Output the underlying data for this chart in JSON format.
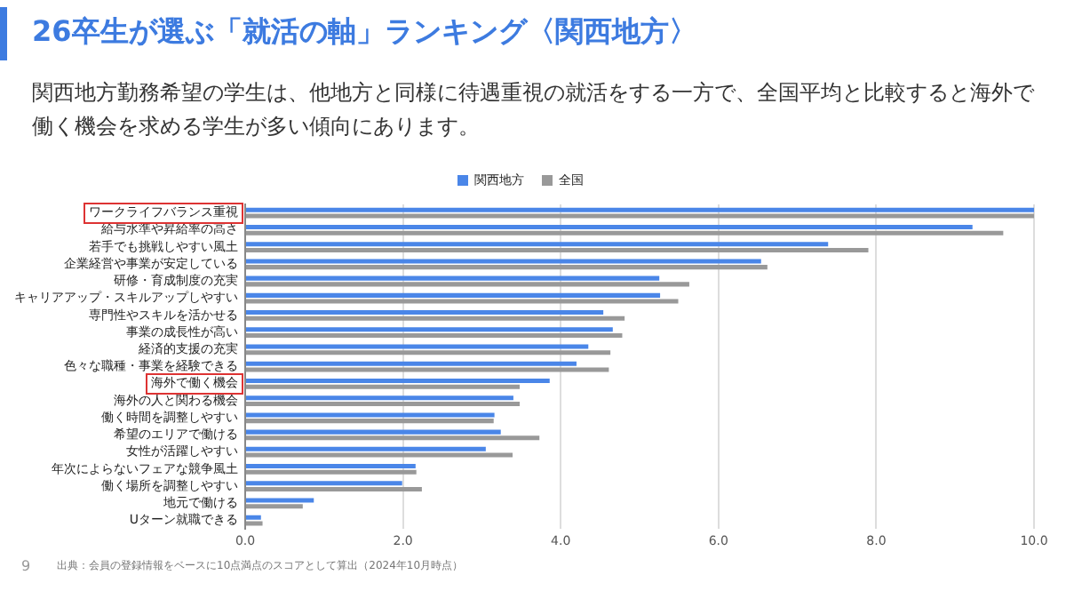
{
  "chart_data": {
    "type": "bar",
    "orientation": "horizontal",
    "title": "26卒生が選ぶ「就活の軸」ランキング〈関西地方〉",
    "subtitle": "関西地方勤務希望の学生は、他地方と同様に待遇重視の就活をする一方で、全国平均と比較すると海外で働く機会を求める学生が多い傾向にあります。",
    "categories": [
      "ワークライフバランス重視",
      "給与水準や昇給率の高さ",
      "若手でも挑戦しやすい風土",
      "企業経営や事業が安定している",
      "研修・育成制度の充実",
      "キャリアアップ・スキルアップしやすい",
      "専門性やスキルを活かせる",
      "事業の成長性が高い",
      "経済的支援の充実",
      "色々な職種・事業を経験できる",
      "海外で働く機会",
      "海外の人と関わる機会",
      "働く時間を調整しやすい",
      "希望のエリアで働ける",
      "女性が活躍しやすい",
      "年次によらないフェアな競争風土",
      "働く場所を調整しやすい",
      "地元で働ける",
      "Uターン就職できる"
    ],
    "series": [
      {
        "name": "関西地方",
        "color": "#4a86e8",
        "values": [
          10,
          9.22,
          7.39,
          6.54,
          5.25,
          5.26,
          4.54,
          4.66,
          4.35,
          4.2,
          3.86,
          3.4,
          3.16,
          3.24,
          3.05,
          2.16,
          1.99,
          0.87,
          0.2
        ]
      },
      {
        "name": "全国",
        "color": "#999999",
        "values": [
          10,
          9.61,
          7.9,
          6.62,
          5.63,
          5.49,
          4.81,
          4.78,
          4.63,
          4.61,
          3.48,
          3.48,
          3.15,
          3.73,
          3.39,
          2.17,
          2.24,
          0.73,
          0.22
        ]
      }
    ],
    "xlim": [
      0,
      10
    ],
    "xticks": [
      {
        "value": 0,
        "label": "0.0"
      },
      {
        "value": 2,
        "label": "2.0"
      },
      {
        "value": 4,
        "label": "4.0"
      },
      {
        "value": 6,
        "label": "6.0"
      },
      {
        "value": 8,
        "label": "8.0"
      },
      {
        "value": 10,
        "label": "10.0"
      }
    ],
    "grid": "x",
    "legend": "top",
    "annotations": [
      "出典：会員の登録情報をベースに10点満点のスコアとして算出（2024年10月時点）",
      "9"
    ]
  }
}
